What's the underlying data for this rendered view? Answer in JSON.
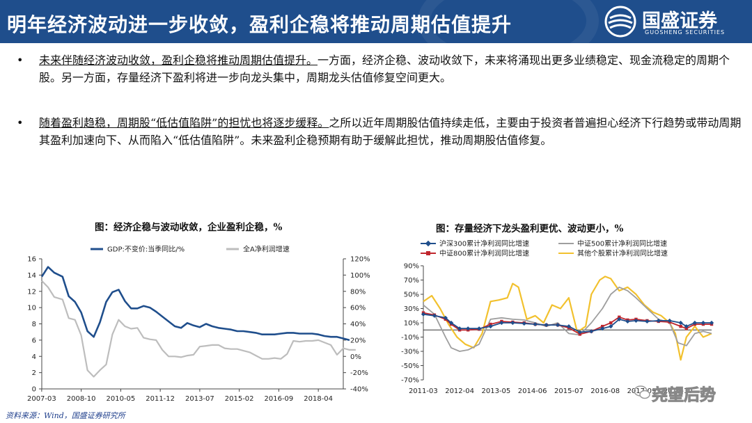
{
  "header": {
    "title": "明年经济波动进一步收敛，盈利企稳将推动周期估值提升",
    "logo_name": "国盛证券",
    "logo_en": "GUOSHENG SECURITIES",
    "bg_color": "#1f4e8c"
  },
  "bullets": [
    {
      "marker": "•",
      "underlined": "未来伴随经济波动收敛，盈利企稳将推动周期估值提升。",
      "rest": "一方面，经济企稳、波动收敛下，未来将涌现出更多业绩稳定、现金流稳定的周期个股。另一方面，存量经济下盈利将进一步向龙头集中，周期龙头估值修复空间更大。"
    },
    {
      "marker": "•",
      "underlined": "随着盈利趋稳，周期股“低估值陷阱”的担忧也将逐步缓释。",
      "rest": "之所以近年周期股估值持续走低，主要由于投资者普遍担心经济下行趋势或带动周期其盈利加速向下、从而陷入“低估值陷阱”。未来盈利企稳预期有助于缓解此担忧，推动周期股估值修复。"
    }
  ],
  "source": "资料来源：Wind，国盛证券研究所",
  "watermark": "尧望后势",
  "chart_data": [
    {
      "type": "line",
      "title": "图：经济企稳与波动收敛，企业盈利企稳，%",
      "x_ticks": [
        "2007-03",
        "2008-10",
        "2010-05",
        "2011-12",
        "2013-07",
        "2015-02",
        "2016-09",
        "2018-04"
      ],
      "x_range": [
        2007.17,
        2019.25
      ],
      "y_left": {
        "range": [
          0,
          16
        ],
        "ticks": [
          "0",
          "2",
          "4",
          "6",
          "8",
          "10",
          "12",
          "14",
          "16"
        ]
      },
      "y_right": {
        "range": [
          -40,
          120
        ],
        "ticks": [
          "-40%",
          "-20%",
          "0%",
          "20%",
          "40%",
          "60%",
          "80%",
          "100%",
          "120%"
        ]
      },
      "series": [
        {
          "name": "GDP:不变价:当季同比/%",
          "axis": "left",
          "color": "#1f4e8c",
          "points": [
            [
              2007.17,
              13.8
            ],
            [
              2007.42,
              15.0
            ],
            [
              2007.67,
              14.3
            ],
            [
              2008.0,
              13.8
            ],
            [
              2008.25,
              11.4
            ],
            [
              2008.5,
              10.7
            ],
            [
              2008.75,
              9.4
            ],
            [
              2009.0,
              7.1
            ],
            [
              2009.25,
              6.4
            ],
            [
              2009.5,
              8.2
            ],
            [
              2009.75,
              10.7
            ],
            [
              2010.0,
              11.9
            ],
            [
              2010.25,
              12.2
            ],
            [
              2010.5,
              10.8
            ],
            [
              2010.75,
              9.9
            ],
            [
              2011.0,
              9.9
            ],
            [
              2011.25,
              10.2
            ],
            [
              2011.5,
              10.0
            ],
            [
              2011.75,
              9.5
            ],
            [
              2012.0,
              8.9
            ],
            [
              2012.25,
              8.3
            ],
            [
              2012.5,
              7.7
            ],
            [
              2012.75,
              7.5
            ],
            [
              2013.0,
              8.1
            ],
            [
              2013.25,
              7.8
            ],
            [
              2013.5,
              7.6
            ],
            [
              2013.75,
              8.0
            ],
            [
              2014.0,
              7.7
            ],
            [
              2014.25,
              7.5
            ],
            [
              2014.5,
              7.4
            ],
            [
              2014.75,
              7.3
            ],
            [
              2015.0,
              7.1
            ],
            [
              2015.25,
              7.1
            ],
            [
              2015.5,
              7.0
            ],
            [
              2015.75,
              6.9
            ],
            [
              2016.0,
              6.7
            ],
            [
              2016.25,
              6.7
            ],
            [
              2016.5,
              6.7
            ],
            [
              2016.75,
              6.8
            ],
            [
              2017.0,
              6.9
            ],
            [
              2017.25,
              6.9
            ],
            [
              2017.5,
              6.8
            ],
            [
              2017.75,
              6.8
            ],
            [
              2018.0,
              6.8
            ],
            [
              2018.25,
              6.7
            ],
            [
              2018.5,
              6.5
            ],
            [
              2018.75,
              6.4
            ],
            [
              2019.0,
              6.4
            ],
            [
              2019.25,
              6.2
            ],
            [
              2019.5,
              6.0
            ]
          ]
        },
        {
          "name": "全A净利润增速",
          "axis": "right",
          "color": "#bdbdbd",
          "points": [
            [
              2007.17,
              93
            ],
            [
              2007.42,
              85
            ],
            [
              2007.67,
              73
            ],
            [
              2008.0,
              70
            ],
            [
              2008.25,
              47
            ],
            [
              2008.5,
              45
            ],
            [
              2008.75,
              26
            ],
            [
              2009.0,
              -17
            ],
            [
              2009.25,
              -25
            ],
            [
              2009.5,
              -17
            ],
            [
              2009.75,
              -10
            ],
            [
              2010.0,
              27
            ],
            [
              2010.25,
              45
            ],
            [
              2010.5,
              37
            ],
            [
              2010.75,
              34
            ],
            [
              2011.0,
              35
            ],
            [
              2011.25,
              23
            ],
            [
              2011.5,
              21
            ],
            [
              2011.75,
              20
            ],
            [
              2012.0,
              8
            ],
            [
              2012.25,
              0
            ],
            [
              2012.5,
              0
            ],
            [
              2012.75,
              -1
            ],
            [
              2013.0,
              1
            ],
            [
              2013.25,
              2
            ],
            [
              2013.5,
              12
            ],
            [
              2013.75,
              13
            ],
            [
              2014.0,
              14
            ],
            [
              2014.25,
              14
            ],
            [
              2014.5,
              10
            ],
            [
              2014.75,
              9
            ],
            [
              2015.0,
              9
            ],
            [
              2015.25,
              7
            ],
            [
              2015.5,
              5
            ],
            [
              2015.75,
              1
            ],
            [
              2016.0,
              -3
            ],
            [
              2016.25,
              -3
            ],
            [
              2016.5,
              -2
            ],
            [
              2016.75,
              -3
            ],
            [
              2017.0,
              3
            ],
            [
              2017.25,
              19
            ],
            [
              2017.5,
              18
            ],
            [
              2017.75,
              19
            ],
            [
              2018.0,
              19
            ],
            [
              2018.25,
              20
            ],
            [
              2018.5,
              17
            ],
            [
              2018.75,
              14
            ],
            [
              2019.0,
              2
            ],
            [
              2019.25,
              10
            ],
            [
              2019.5,
              8
            ],
            [
              2019.75,
              8
            ]
          ]
        }
      ]
    },
    {
      "type": "line",
      "title": "图：存量经济下龙头盈利更优、波动更小，%",
      "x_ticks": [
        "2011-03",
        "2012-04",
        "2013-05",
        "2014-06",
        "2015-07",
        "2016-08",
        "2017-09",
        "2018-10"
      ],
      "x_range": [
        2011.17,
        2019.75
      ],
      "y_range": [
        -70,
        90
      ],
      "y_ticks": [
        "-70%",
        "-50%",
        "-30%",
        "-10%",
        "10%",
        "30%",
        "50%",
        "70%",
        "90%"
      ],
      "series": [
        {
          "name": "沪深300累计净利润同比增速",
          "color": "#1f4e8c",
          "marker": "diamond",
          "points": [
            [
              2011.17,
              22
            ],
            [
              2011.5,
              20
            ],
            [
              2011.83,
              17
            ],
            [
              2012.0,
              10
            ],
            [
              2012.25,
              2
            ],
            [
              2012.5,
              2
            ],
            [
              2012.83,
              2
            ],
            [
              2013.17,
              5
            ],
            [
              2013.5,
              10
            ],
            [
              2013.83,
              10
            ],
            [
              2014.17,
              9
            ],
            [
              2014.5,
              8
            ],
            [
              2014.83,
              7
            ],
            [
              2015.17,
              7
            ],
            [
              2015.5,
              5
            ],
            [
              2015.83,
              -3
            ],
            [
              2016.17,
              -2
            ],
            [
              2016.5,
              2
            ],
            [
              2016.75,
              5
            ],
            [
              2017.0,
              15
            ],
            [
              2017.25,
              12
            ],
            [
              2017.5,
              13
            ],
            [
              2017.83,
              12
            ],
            [
              2018.17,
              13
            ],
            [
              2018.5,
              13
            ],
            [
              2018.83,
              10
            ],
            [
              2019.0,
              5
            ],
            [
              2019.25,
              10
            ],
            [
              2019.5,
              10
            ],
            [
              2019.75,
              10
            ]
          ]
        },
        {
          "name": "中证500累计净利润同比增速",
          "color": "#9e9e9e",
          "marker": "none",
          "points": [
            [
              2011.17,
              35
            ],
            [
              2011.5,
              22
            ],
            [
              2011.83,
              -10
            ],
            [
              2012.0,
              -25
            ],
            [
              2012.25,
              -30
            ],
            [
              2012.5,
              -28
            ],
            [
              2012.83,
              -20
            ],
            [
              2013.17,
              15
            ],
            [
              2013.5,
              17
            ],
            [
              2013.83,
              15
            ],
            [
              2014.17,
              14
            ],
            [
              2014.5,
              10
            ],
            [
              2014.83,
              5
            ],
            [
              2015.17,
              10
            ],
            [
              2015.5,
              -5
            ],
            [
              2015.83,
              -7
            ],
            [
              2016.17,
              10
            ],
            [
              2016.5,
              30
            ],
            [
              2016.75,
              50
            ],
            [
              2017.0,
              60
            ],
            [
              2017.25,
              55
            ],
            [
              2017.5,
              45
            ],
            [
              2017.83,
              30
            ],
            [
              2018.17,
              15
            ],
            [
              2018.5,
              10
            ],
            [
              2018.75,
              -18
            ],
            [
              2019.0,
              -22
            ],
            [
              2019.25,
              -5
            ],
            [
              2019.5,
              -2
            ],
            [
              2019.75,
              -5
            ]
          ]
        },
        {
          "name": "中证800累计净利润同比增速",
          "color": "#c0262d",
          "marker": "square",
          "points": [
            [
              2011.17,
              24
            ],
            [
              2011.5,
              21
            ],
            [
              2011.83,
              15
            ],
            [
              2012.0,
              8
            ],
            [
              2012.25,
              0
            ],
            [
              2012.5,
              0
            ],
            [
              2012.83,
              1
            ],
            [
              2013.17,
              8
            ],
            [
              2013.5,
              12
            ],
            [
              2013.83,
              11
            ],
            [
              2014.17,
              10
            ],
            [
              2014.5,
              8
            ],
            [
              2014.83,
              7
            ],
            [
              2015.17,
              7
            ],
            [
              2015.5,
              3
            ],
            [
              2015.83,
              -6
            ],
            [
              2016.17,
              -2
            ],
            [
              2016.5,
              5
            ],
            [
              2016.75,
              10
            ],
            [
              2017.0,
              18
            ],
            [
              2017.25,
              14
            ],
            [
              2017.5,
              15
            ],
            [
              2017.83,
              13
            ],
            [
              2018.17,
              12
            ],
            [
              2018.5,
              11
            ],
            [
              2018.83,
              5
            ],
            [
              2019.0,
              2
            ],
            [
              2019.25,
              8
            ],
            [
              2019.5,
              8
            ],
            [
              2019.75,
              8
            ]
          ]
        },
        {
          "name": "其他个股累计净利润同比增速",
          "color": "#f2c12e",
          "marker": "none",
          "points": [
            [
              2011.17,
              40
            ],
            [
              2011.42,
              48
            ],
            [
              2011.67,
              30
            ],
            [
              2011.92,
              8
            ],
            [
              2012.17,
              -10
            ],
            [
              2012.42,
              -20
            ],
            [
              2012.67,
              -25
            ],
            [
              2012.92,
              -5
            ],
            [
              2013.17,
              40
            ],
            [
              2013.42,
              42
            ],
            [
              2013.67,
              45
            ],
            [
              2013.83,
              65
            ],
            [
              2014.0,
              60
            ],
            [
              2014.25,
              15
            ],
            [
              2014.5,
              20
            ],
            [
              2014.75,
              10
            ],
            [
              2015.0,
              35
            ],
            [
              2015.25,
              30
            ],
            [
              2015.5,
              45
            ],
            [
              2015.75,
              -3
            ],
            [
              2016.0,
              5
            ],
            [
              2016.17,
              50
            ],
            [
              2016.42,
              70
            ],
            [
              2016.58,
              75
            ],
            [
              2016.75,
              72
            ],
            [
              2017.0,
              55
            ],
            [
              2017.25,
              60
            ],
            [
              2017.5,
              50
            ],
            [
              2017.75,
              35
            ],
            [
              2018.0,
              25
            ],
            [
              2018.25,
              20
            ],
            [
              2018.5,
              10
            ],
            [
              2018.67,
              -5
            ],
            [
              2018.83,
              -42
            ],
            [
              2019.0,
              -10
            ],
            [
              2019.25,
              5
            ],
            [
              2019.5,
              -10
            ],
            [
              2019.75,
              -5
            ]
          ]
        }
      ]
    }
  ]
}
